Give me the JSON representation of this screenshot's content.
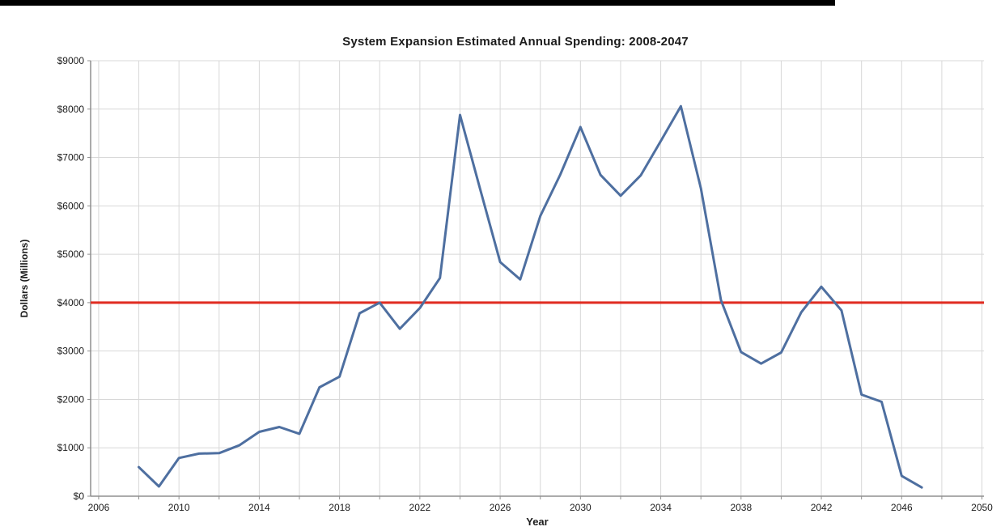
{
  "page": {
    "top_bar_color": "#000000",
    "background_color": "#ffffff"
  },
  "chart_data": {
    "type": "line",
    "title": "System Expansion Estimated Annual Spending: 2008-2047",
    "xlabel": "Year",
    "ylabel": "Dollars (Millions)",
    "x": [
      2008,
      2009,
      2010,
      2011,
      2012,
      2013,
      2014,
      2015,
      2016,
      2017,
      2018,
      2019,
      2020,
      2021,
      2022,
      2023,
      2024,
      2025,
      2026,
      2027,
      2028,
      2029,
      2030,
      2031,
      2032,
      2033,
      2034,
      2035,
      2036,
      2037,
      2038,
      2039,
      2040,
      2041,
      2042,
      2043,
      2044,
      2045,
      2046,
      2047
    ],
    "values": [
      600,
      200,
      790,
      880,
      890,
      1050,
      1330,
      1430,
      1290,
      2250,
      2470,
      3780,
      4000,
      3460,
      3890,
      4510,
      7880,
      6350,
      4840,
      4480,
      5790,
      6650,
      7630,
      6640,
      6210,
      6630,
      7340,
      8060,
      6360,
      4050,
      2980,
      2740,
      2970,
      3800,
      4330,
      3840,
      2100,
      1950,
      420,
      180
    ],
    "reference_line": {
      "value": 4000,
      "color": "#e02b20"
    },
    "xlim": [
      2005.6,
      2050.1
    ],
    "ylim": [
      0,
      9000
    ],
    "x_ticks_labeled": [
      2006,
      2010,
      2014,
      2018,
      2022,
      2026,
      2030,
      2034,
      2038,
      2042,
      2046,
      2050
    ],
    "x_grid_start": 2006,
    "x_grid_end": 2050,
    "x_grid_step": 2,
    "y_tick_step": 1000,
    "y_tick_prefix": "$",
    "grid": true,
    "legend_position": "none",
    "line_color": "#4e6fa0",
    "grid_color": "#d8d8d8",
    "axis_color": "#8f8f8f",
    "text_color": "#1c1c1c"
  }
}
